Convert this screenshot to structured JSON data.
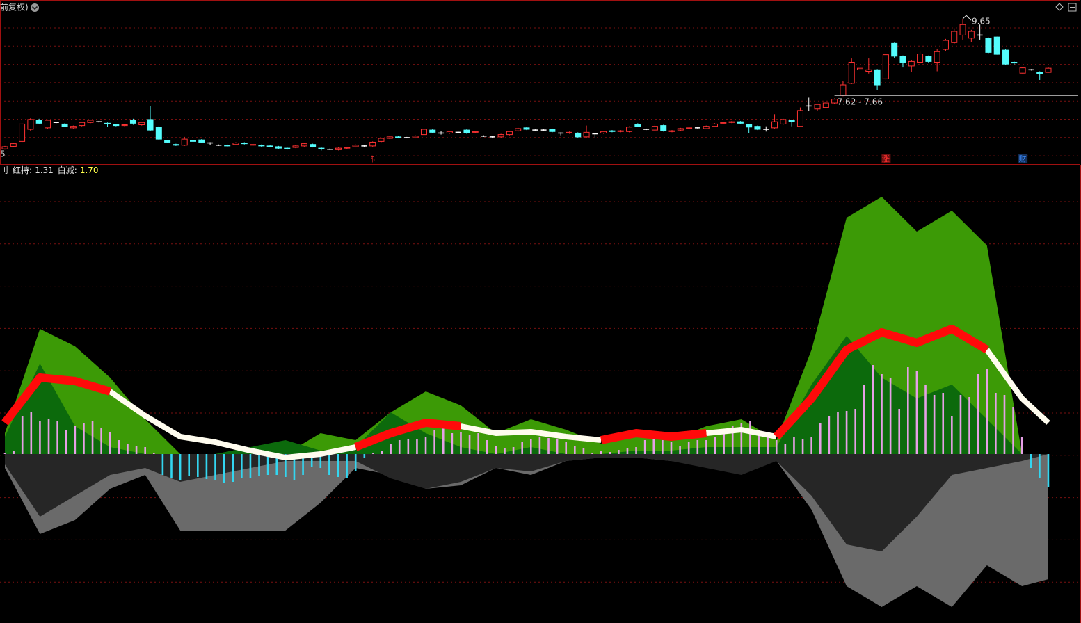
{
  "chart_data": [
    {
      "type": "candlestick",
      "title": "前复权)",
      "edge_label": "5",
      "up_color": "#ff3232",
      "down_color": "#54fcfc",
      "flat_color": "#ffffff",
      "ylim": [
        5.78,
        10.15
      ],
      "open": [
        6.2,
        6.27,
        6.4,
        6.72,
        6.96,
        6.76,
        6.9,
        6.86,
        6.76,
        6.82,
        6.9,
        6.92,
        6.88,
        6.84,
        6.82,
        6.96,
        6.84,
        6.98,
        6.78,
        6.42,
        6.32,
        6.3,
        6.42,
        6.44,
        6.36,
        6.3,
        6.3,
        6.32,
        6.36,
        6.3,
        6.3,
        6.28,
        6.26,
        6.22,
        6.24,
        6.28,
        6.32,
        6.22,
        6.19,
        6.18,
        6.22,
        6.26,
        6.28,
        6.28,
        6.4,
        6.48,
        6.52,
        6.5,
        6.5,
        6.58,
        6.7,
        6.62,
        6.62,
        6.64,
        6.7,
        6.64,
        6.54,
        6.52,
        6.52,
        6.58,
        6.68,
        6.76,
        6.7,
        6.7,
        6.72,
        6.62,
        6.62,
        6.62,
        6.52,
        6.6,
        6.62,
        6.68,
        6.66,
        6.66,
        6.84,
        6.72,
        6.7,
        6.82,
        6.66,
        6.7,
        6.74,
        6.76,
        6.74,
        6.8,
        6.88,
        6.9,
        6.92,
        6.84,
        6.8,
        6.72,
        6.76,
        6.86,
        6.96,
        6.8,
        7.34,
        7.26,
        7.3,
        7.42,
        7.62,
        7.94,
        8.3,
        8.26,
        8.3,
        8.06,
        9.0,
        8.66,
        8.4,
        8.5,
        8.66,
        8.5,
        8.84,
        9.02,
        9.22,
        9.14,
        9.22,
        9.13,
        9.17,
        8.82,
        8.5,
        8.21,
        8.3,
        8.24,
        8.23
      ],
      "high": [
        6.28,
        6.36,
        6.88,
        7.02,
        7.0,
        6.98,
        6.92,
        6.88,
        6.82,
        6.92,
        6.98,
        6.94,
        6.9,
        6.86,
        6.86,
        7.0,
        6.92,
        7.34,
        6.8,
        6.44,
        6.34,
        6.52,
        6.44,
        6.46,
        6.38,
        6.32,
        6.32,
        6.38,
        6.38,
        6.34,
        6.32,
        6.3,
        6.28,
        6.24,
        6.3,
        6.36,
        6.34,
        6.24,
        6.21,
        6.24,
        6.26,
        6.32,
        6.3,
        6.4,
        6.5,
        6.54,
        6.54,
        6.52,
        6.56,
        6.74,
        6.72,
        6.68,
        6.68,
        6.66,
        6.72,
        6.68,
        6.56,
        6.54,
        6.6,
        6.68,
        6.76,
        6.78,
        6.72,
        6.72,
        6.74,
        6.64,
        6.66,
        6.64,
        6.82,
        6.62,
        6.68,
        6.7,
        6.7,
        6.8,
        6.88,
        6.74,
        6.84,
        6.84,
        6.7,
        6.76,
        6.78,
        6.78,
        6.82,
        6.88,
        6.92,
        6.94,
        6.94,
        6.86,
        6.82,
        6.8,
        7.12,
        7.0,
        6.98,
        7.3,
        7.56,
        7.4,
        7.44,
        7.54,
        8.0,
        8.6,
        8.56,
        8.6,
        8.32,
        8.72,
        9.02,
        8.68,
        8.56,
        8.78,
        8.68,
        8.86,
        9.12,
        9.4,
        9.65,
        9.36,
        9.5,
        9.16,
        9.18,
        8.84,
        8.52,
        8.37,
        8.32,
        8.26,
        8.36
      ],
      "low": [
        6.18,
        6.25,
        6.38,
        6.68,
        6.86,
        6.74,
        6.88,
        6.78,
        6.74,
        6.8,
        6.88,
        6.9,
        6.78,
        6.8,
        6.8,
        6.84,
        6.82,
        6.68,
        6.44,
        6.36,
        6.28,
        6.28,
        6.38,
        6.36,
        6.3,
        6.28,
        6.26,
        6.3,
        6.32,
        6.28,
        6.26,
        6.24,
        6.2,
        6.18,
        6.22,
        6.26,
        6.24,
        6.16,
        6.17,
        6.16,
        6.2,
        6.24,
        6.26,
        6.26,
        6.38,
        6.46,
        6.48,
        6.48,
        6.48,
        6.56,
        6.62,
        6.58,
        6.6,
        6.62,
        6.6,
        6.62,
        6.52,
        6.48,
        6.5,
        6.56,
        6.66,
        6.7,
        6.68,
        6.68,
        6.64,
        6.56,
        6.6,
        6.5,
        6.5,
        6.48,
        6.6,
        6.64,
        6.64,
        6.64,
        6.78,
        6.7,
        6.68,
        6.66,
        6.64,
        6.68,
        6.72,
        6.74,
        6.72,
        6.78,
        6.86,
        6.88,
        6.86,
        6.62,
        6.7,
        6.66,
        6.74,
        6.84,
        6.8,
        6.78,
        7.2,
        7.22,
        7.28,
        7.4,
        7.6,
        7.92,
        8.1,
        8.2,
        7.76,
        8.04,
        8.62,
        8.36,
        8.24,
        8.46,
        8.48,
        8.26,
        8.8,
        8.98,
        9.1,
        9.04,
        9.1,
        8.74,
        8.7,
        8.42,
        8.42,
        8.2,
        8.28,
        8.03,
        8.22
      ],
      "close": [
        6.26,
        6.34,
        6.86,
        6.98,
        6.88,
        6.96,
        6.9,
        6.8,
        6.8,
        6.9,
        6.96,
        6.92,
        6.86,
        6.82,
        6.84,
        6.88,
        6.9,
        6.7,
        6.46,
        6.38,
        6.3,
        6.46,
        6.4,
        6.38,
        6.36,
        6.3,
        6.28,
        6.36,
        6.34,
        6.32,
        6.28,
        6.26,
        6.22,
        6.2,
        6.28,
        6.34,
        6.26,
        6.2,
        6.19,
        6.22,
        6.24,
        6.3,
        6.28,
        6.38,
        6.48,
        6.52,
        6.5,
        6.5,
        6.54,
        6.72,
        6.64,
        6.62,
        6.66,
        6.64,
        6.62,
        6.66,
        6.54,
        6.52,
        6.58,
        6.66,
        6.74,
        6.72,
        6.7,
        6.7,
        6.66,
        6.62,
        6.64,
        6.52,
        6.64,
        6.6,
        6.66,
        6.66,
        6.68,
        6.78,
        6.8,
        6.72,
        6.8,
        6.68,
        6.68,
        6.74,
        6.76,
        6.76,
        6.8,
        6.86,
        6.9,
        6.92,
        6.88,
        6.78,
        6.72,
        6.72,
        6.92,
        6.98,
        6.92,
        7.22,
        7.34,
        7.38,
        7.42,
        7.52,
        7.9,
        8.5,
        8.34,
        8.3,
        7.9,
        8.7,
        8.66,
        8.5,
        8.52,
        8.72,
        8.52,
        8.78,
        9.08,
        9.32,
        9.5,
        9.32,
        9.22,
        8.76,
        8.71,
        8.45,
        8.48,
        8.35,
        8.3,
        8.2,
        8.34
      ],
      "high_label": {
        "index": 112,
        "value": 9.65
      },
      "range_line": {
        "label": "7.62 - 7.66",
        "low": 7.62,
        "high": 7.66,
        "index": 97
      },
      "markers": [
        {
          "label": "$",
          "index": 43,
          "color": "#ff3232"
        },
        {
          "label": "涨",
          "index": 103,
          "color": "#ff3232"
        },
        {
          "label": "财",
          "index": 119,
          "color": "#3a8cff"
        }
      ]
    },
    {
      "type": "indicator",
      "prefix": "刂",
      "legend": [
        {
          "name": "红持:",
          "value": 1.31,
          "color": "#e0e0e0"
        },
        {
          "name": "白减:",
          "value": 1.7,
          "label": "1.70",
          "color": "#ffff4a"
        }
      ],
      "xlim": [
        0,
        119
      ],
      "ylim": [
        -2.43,
        4.15
      ],
      "x": [
        0,
        4,
        8,
        12,
        16,
        20,
        24,
        28,
        32,
        36,
        40,
        44,
        48,
        52,
        56,
        60,
        64,
        68,
        72,
        76,
        80,
        84,
        88,
        92,
        96,
        100,
        104,
        108,
        112,
        116,
        119
      ],
      "areas": [
        {
          "color": "#6a6a6a",
          "values": [
            -0.2,
            -1.15,
            -0.95,
            -0.5,
            -0.3,
            -1.1,
            -1.1,
            -1.1,
            -1.1,
            -0.7,
            -0.2,
            -0.3,
            -0.5,
            -0.45,
            -0.2,
            -0.3,
            -0.1,
            -0.05,
            -0.05,
            -0.1,
            -0.15,
            -0.2,
            -0.1,
            -0.8,
            -1.9,
            -2.2,
            -1.9,
            -2.2,
            -1.6,
            -1.9,
            -1.8
          ]
        },
        {
          "color": "#262626",
          "values": [
            -0.15,
            -0.9,
            -0.6,
            -0.3,
            -0.2,
            -0.4,
            -0.3,
            -0.2,
            -0.1,
            -0.1,
            -0.1,
            -0.35,
            -0.5,
            -0.4,
            -0.2,
            -0.25,
            -0.1,
            -0.05,
            -0.05,
            -0.1,
            -0.2,
            -0.3,
            -0.1,
            -0.6,
            -1.3,
            -1.4,
            -0.9,
            -0.3,
            -0.2,
            -0.1,
            0
          ]
        },
        {
          "color": "#3c9a06",
          "values": [
            0.3,
            1.8,
            1.55,
            1.1,
            0.5,
            0,
            0,
            0.1,
            0,
            0.3,
            0.2,
            0.6,
            0.9,
            0.7,
            0.3,
            0.5,
            0.35,
            0.15,
            0.3,
            0.2,
            0.4,
            0.5,
            0.2,
            1.5,
            3.4,
            3.7,
            3.2,
            3.5,
            3.0,
            0,
            0
          ]
        },
        {
          "color": "#0c6a0c",
          "values": [
            0.25,
            1.3,
            0.4,
            0.1,
            0,
            0,
            0,
            0.1,
            0.2,
            0.05,
            0.1,
            0.6,
            0.3,
            0.1,
            0,
            0.1,
            0,
            0,
            0.05,
            0.05,
            0.1,
            0.1,
            0.1,
            1.0,
            1.7,
            1.1,
            0.8,
            1.0,
            0.5,
            0,
            0
          ]
        }
      ],
      "bars": [
        0.02,
        0.05,
        0.55,
        0.6,
        0.48,
        0.5,
        0.47,
        0.35,
        0.4,
        0.45,
        0.48,
        0.38,
        0.32,
        0.2,
        0.15,
        0.12,
        0.1,
        0.02,
        -0.3,
        -0.35,
        -0.38,
        -0.32,
        -0.33,
        -0.36,
        -0.38,
        -0.42,
        -0.4,
        -0.35,
        -0.35,
        -0.32,
        -0.3,
        -0.3,
        -0.33,
        -0.38,
        -0.3,
        -0.18,
        -0.2,
        -0.3,
        -0.33,
        -0.35,
        -0.25,
        -0.05,
        0.02,
        0.05,
        0.15,
        0.2,
        0.22,
        0.22,
        0.25,
        0.35,
        0.38,
        0.3,
        0.32,
        0.28,
        0.3,
        0.2,
        0.12,
        0.08,
        0.1,
        0.18,
        0.22,
        0.25,
        0.23,
        0.22,
        0.18,
        0.12,
        0.08,
        0.02,
        0.05,
        0.03,
        0.06,
        0.08,
        0.1,
        0.2,
        0.25,
        0.2,
        0.18,
        0.12,
        0.18,
        0.2,
        0.2,
        0.25,
        0.3,
        0.4,
        0.45,
        0.47,
        0.35,
        0.25,
        0.2,
        0.15,
        0.25,
        0.22,
        0.25,
        0.45,
        0.55,
        0.6,
        0.62,
        0.65,
        1.0,
        1.28,
        1.15,
        1.1,
        0.65,
        1.25,
        1.2,
        1.0,
        0.85,
        0.88,
        0.55,
        0.85,
        0.82,
        1.15,
        1.22,
        0.88,
        0.85,
        0.68,
        0.25,
        -0.2,
        -0.35,
        -0.47
      ],
      "bar_up_color": "#e6a0e6",
      "bar_down_color": "#33d6f0",
      "lines": [
        {
          "color": "#fffcee",
          "width": 8,
          "values": [
            null,
            null,
            null,
            0.9,
            0.55,
            0.25,
            0.17,
            0.05,
            -0.05,
            0.0,
            0.1,
            null,
            null,
            0.4,
            0.3,
            0.32,
            0.25,
            0.2,
            null,
            null,
            0.3,
            0.35,
            0.25,
            null,
            null,
            null,
            null,
            null,
            1.5,
            0.8,
            0.45
          ]
        },
        {
          "color": "#ff0a0a",
          "width": 12,
          "values": [
            0.45,
            1.1,
            1.05,
            0.9,
            null,
            null,
            null,
            null,
            null,
            null,
            0.1,
            0.3,
            0.45,
            0.4,
            null,
            null,
            null,
            0.2,
            0.3,
            0.25,
            0.3,
            null,
            0.25,
            0.8,
            1.5,
            1.75,
            1.6,
            1.8,
            1.5,
            null,
            null
          ]
        }
      ]
    }
  ]
}
